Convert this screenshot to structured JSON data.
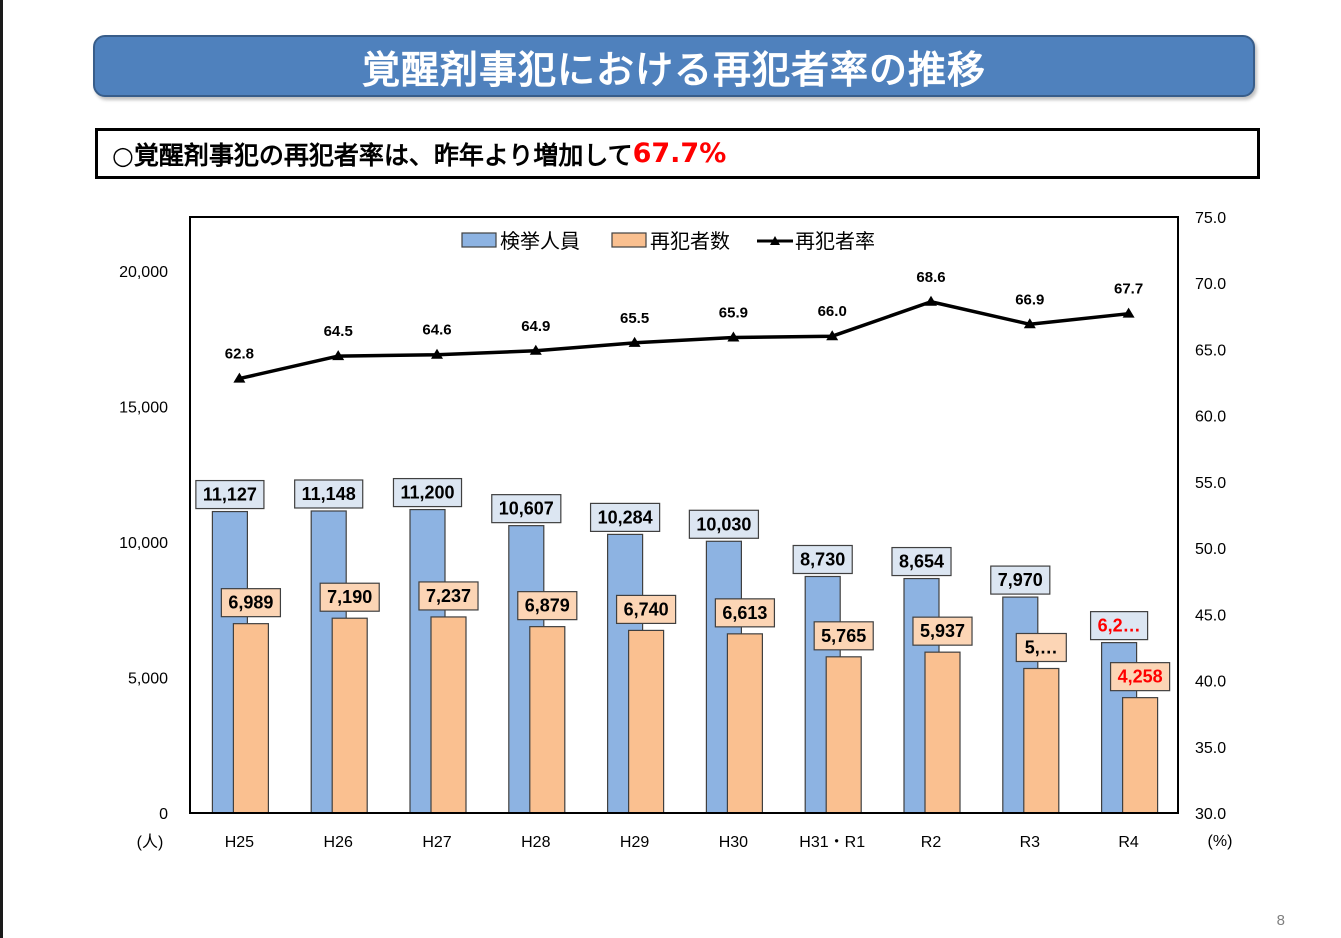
{
  "page": {
    "title": "覚醒剤事犯における再犯者率の推移",
    "summary_prefix": "○覚醒剤事犯の再犯者率は、昨年より増加して",
    "summary_highlight": "67.7%",
    "page_number": "8"
  },
  "colors": {
    "banner": "#4f81bd",
    "arrests_bar": "#8db3e2",
    "repeat_bar": "#fac090",
    "arrests_label_bg": "#dce6f2",
    "repeat_label_bg": "#fcd5b5",
    "highlight": "#ff0000",
    "line": "#000000"
  },
  "chart_data": {
    "type": "bar+line",
    "title": "",
    "categories": [
      "H25",
      "H26",
      "H27",
      "H28",
      "H29",
      "H30",
      "H31・R1",
      "R2",
      "R3",
      "R4"
    ],
    "series": [
      {
        "name": "検挙人員",
        "type": "bar",
        "axis": "left",
        "values": [
          11127,
          11148,
          11200,
          10607,
          10284,
          10030,
          8730,
          8654,
          7970,
          6289
        ],
        "labels": [
          "11,127",
          "11,148",
          "11,200",
          "10,607",
          "10,284",
          "10,030",
          "8,730",
          "8,654",
          "7,970",
          "6,2…"
        ],
        "label_highlight": [
          false,
          false,
          false,
          false,
          false,
          false,
          false,
          false,
          false,
          true
        ]
      },
      {
        "name": "再犯者数",
        "type": "bar",
        "axis": "left",
        "values": [
          6989,
          7190,
          7237,
          6879,
          6740,
          6613,
          5765,
          5937,
          5334,
          4258
        ],
        "labels": [
          "6,989",
          "7,190",
          "7,237",
          "6,879",
          "6,740",
          "6,613",
          "5,765",
          "5,937",
          "5,…",
          "4,258"
        ],
        "label_highlight": [
          false,
          false,
          false,
          false,
          false,
          false,
          false,
          false,
          false,
          true
        ]
      },
      {
        "name": "再犯者率",
        "type": "line",
        "axis": "right",
        "marker": "triangle",
        "values": [
          62.8,
          64.5,
          64.6,
          64.9,
          65.5,
          65.9,
          66.0,
          68.6,
          66.9,
          67.7
        ],
        "labels": [
          "62.8",
          "64.5",
          "64.6",
          "64.9",
          "65.5",
          "65.9",
          "66.0",
          "68.6",
          "66.9",
          "67.7"
        ],
        "label_highlight": [
          false,
          false,
          false,
          false,
          false,
          false,
          false,
          false,
          false,
          true
        ]
      }
    ],
    "left_axis": {
      "unit_label": "(人)",
      "range": [
        0,
        22000
      ],
      "ticks": [
        0,
        5000,
        10000,
        15000,
        20000
      ],
      "tick_labels": [
        "0",
        "5,000",
        "10,000",
        "15,000",
        "20,000"
      ]
    },
    "right_axis": {
      "unit_label": "(%)",
      "range": [
        30.0,
        75.0
      ],
      "ticks": [
        30,
        35,
        40,
        45,
        50,
        55,
        60,
        65,
        70,
        75
      ],
      "tick_labels": [
        "30.0",
        "35.0",
        "40.0",
        "45.0",
        "50.0",
        "55.0",
        "60.0",
        "65.0",
        "70.0",
        "75.0"
      ]
    },
    "legend": {
      "position": "top-center",
      "entries": [
        "検挙人員",
        "再犯者数",
        "再犯者率"
      ]
    },
    "grid": false
  }
}
